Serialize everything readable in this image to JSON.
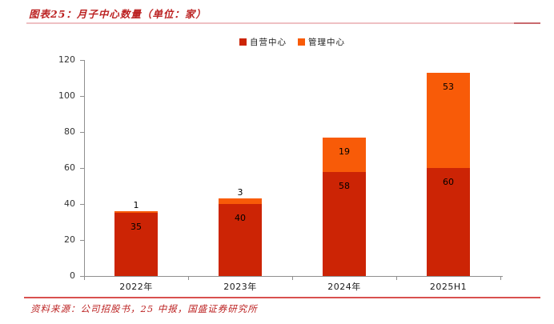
{
  "header": {
    "title": "图表25：月子中心数量（单位：家）"
  },
  "footer": {
    "source": "资料来源：公司招股书，25 中报，国盛证券研究所"
  },
  "colors": {
    "title_red": "#bc2323",
    "rule_pink": "#eec0c3",
    "rule_pink_dark": "#c96a6e",
    "rule_bottom": "#d9504f",
    "axis_gray": "#8f8f8f",
    "self_operated": "#cc2405",
    "managed": "#f85b08"
  },
  "chart_data": {
    "type": "bar",
    "subtype": "stacked",
    "title": "月子中心数量（单位：家）",
    "categories": [
      "2022年",
      "2023年",
      "2024年",
      "2025H1"
    ],
    "series": [
      {
        "name": "自营中心",
        "color": "#cc2405",
        "values": [
          35,
          40,
          58,
          60
        ]
      },
      {
        "name": "管理中心",
        "color": "#f85b08",
        "values": [
          1,
          3,
          19,
          53
        ]
      }
    ],
    "ylim": [
      0,
      120
    ],
    "yticks": [
      0,
      20,
      40,
      60,
      80,
      100,
      120
    ],
    "grid": false,
    "legend_position": "top-center",
    "data_labels": true
  }
}
